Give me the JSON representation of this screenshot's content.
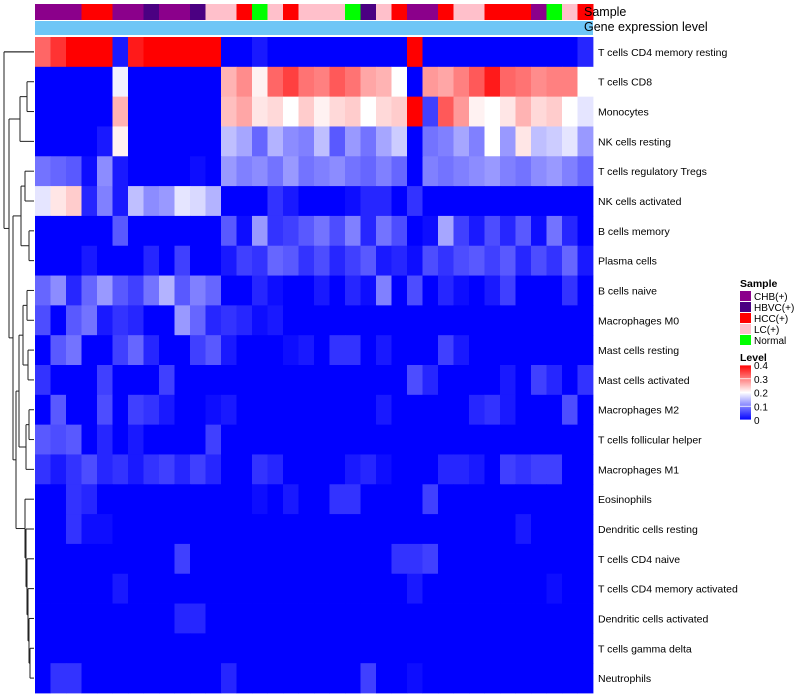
{
  "chart_data": {
    "type": "heatmap",
    "title": "",
    "annotation_labels": [
      "Sample",
      "Gene expression level"
    ],
    "annotation_bar_color": "#6EC6F6",
    "sample_groups": [
      {
        "name": "CHB(+)",
        "color": "#8B008B"
      },
      {
        "name": "HBVC(+)",
        "color": "#4B0082"
      },
      {
        "name": "HCC(+)",
        "color": "#FF0000"
      },
      {
        "name": "LC(+)",
        "color": "#FFC0CB"
      },
      {
        "name": "Normal",
        "color": "#00FF00"
      }
    ],
    "sample_annotation": [
      0,
      0,
      0,
      2,
      2,
      0,
      0,
      1,
      0,
      0,
      1,
      3,
      3,
      2,
      4,
      3,
      2,
      3,
      3,
      3,
      4,
      1,
      3,
      2,
      0,
      0,
      2,
      3,
      3,
      2,
      2,
      2,
      0,
      4,
      3,
      2
    ],
    "rows": [
      "T cells CD4 memory resting",
      "T cells CD8",
      "Monocytes",
      "NK cells resting",
      "T cells regulatory  Tregs",
      "NK cells activated",
      "B cells memory",
      "Plasma cells",
      "B cells naive",
      "Macrophages M0",
      "Mast cells resting",
      "Mast cells activated",
      "Macrophages M2",
      "T cells follicular helper",
      "Macrophages M1",
      "Eosinophils",
      "Dendritic cells resting",
      "T cells CD4 naive",
      "T cells CD4 memory activated",
      "Dendritic cells activated",
      "T cells gamma delta",
      "Neutrophils"
    ],
    "values": [
      [
        0.32,
        0.36,
        0.4,
        0.4,
        0.4,
        0.02,
        0.38,
        0.4,
        0.4,
        0.4,
        0.4,
        0.4,
        0,
        0,
        0.02,
        0,
        0,
        0,
        0,
        0,
        0,
        0,
        0,
        0,
        0.4,
        0,
        0,
        0,
        0,
        0,
        0,
        0,
        0,
        0,
        0,
        0.03
      ],
      [
        0,
        0,
        0,
        0,
        0,
        0.19,
        0,
        0,
        0,
        0,
        0,
        0,
        0.26,
        0.29,
        0.21,
        0.32,
        0.35,
        0.31,
        0.3,
        0.33,
        0.31,
        0.27,
        0.26,
        0.2,
        0,
        0.28,
        0.27,
        0.3,
        0.33,
        0.38,
        0.32,
        0.31,
        0.29,
        0.3,
        0.3,
        0.2
      ],
      [
        0,
        0,
        0,
        0,
        0,
        0.26,
        0,
        0,
        0,
        0,
        0,
        0,
        0.25,
        0.27,
        0.22,
        0.23,
        0.2,
        0.24,
        0.21,
        0.23,
        0.24,
        0.2,
        0.23,
        0.24,
        0.4,
        0.05,
        0.33,
        0.28,
        0.21,
        0.2,
        0.22,
        0.26,
        0.23,
        0.24,
        0.2,
        0.18
      ],
      [
        0,
        0,
        0,
        0,
        0.02,
        0.21,
        0,
        0,
        0,
        0,
        0,
        0,
        0.15,
        0.13,
        0.08,
        0.14,
        0.11,
        0.1,
        0.15,
        0.07,
        0.12,
        0.09,
        0.13,
        0.16,
        0,
        0.09,
        0.1,
        0.13,
        0.1,
        0.2,
        0.12,
        0.22,
        0.15,
        0.16,
        0.18,
        0.12
      ],
      [
        0.09,
        0.08,
        0.07,
        0.01,
        0.11,
        0.02,
        0,
        0,
        0,
        0,
        0.01,
        0,
        0.12,
        0.1,
        0.11,
        0.09,
        0.12,
        0.09,
        0.1,
        0.11,
        0.09,
        0.08,
        0.1,
        0.08,
        0,
        0.1,
        0.09,
        0.1,
        0.11,
        0.12,
        0.1,
        0.09,
        0.11,
        0.12,
        0.1,
        0.08
      ],
      [
        0.18,
        0.22,
        0.24,
        0.03,
        0.1,
        0.02,
        0.15,
        0.11,
        0.12,
        0.18,
        0.17,
        0.14,
        0,
        0,
        0,
        0.04,
        0.02,
        0,
        0,
        0,
        0.01,
        0.03,
        0.03,
        0,
        0.04,
        0,
        0,
        0,
        0,
        0,
        0,
        0,
        0,
        0,
        0,
        0
      ],
      [
        0,
        0,
        0,
        0,
        0,
        0.07,
        0,
        0,
        0,
        0,
        0,
        0,
        0.07,
        0.01,
        0.12,
        0.04,
        0.05,
        0.07,
        0.09,
        0.06,
        0.1,
        0.03,
        0.09,
        0.06,
        0,
        0.01,
        0.13,
        0.05,
        0.02,
        0.06,
        0.03,
        0.07,
        0.01,
        0.09,
        0.03,
        0
      ],
      [
        0,
        0,
        0,
        0.02,
        0,
        0,
        0,
        0.03,
        0,
        0.05,
        0,
        0,
        0.02,
        0.05,
        0.04,
        0.08,
        0.07,
        0.04,
        0.06,
        0.03,
        0.05,
        0.07,
        0.02,
        0.03,
        0.01,
        0.06,
        0.04,
        0.06,
        0.07,
        0.05,
        0.07,
        0.03,
        0.06,
        0.04,
        0.08,
        0.02
      ],
      [
        0.08,
        0.11,
        0.03,
        0.08,
        0.12,
        0.07,
        0.05,
        0.09,
        0.14,
        0.07,
        0.1,
        0.08,
        0,
        0,
        0.03,
        0.01,
        0,
        0,
        0.02,
        0,
        0.03,
        0.01,
        0.1,
        0,
        0.06,
        0,
        0.03,
        0.01,
        0,
        0.02,
        0.05,
        0,
        0,
        0,
        0.04,
        0
      ],
      [
        0.06,
        0,
        0.07,
        0.09,
        0.02,
        0.04,
        0.03,
        0,
        0,
        0.12,
        0.08,
        0.03,
        0.04,
        0.03,
        0.01,
        0.02,
        0,
        0,
        0,
        0,
        0,
        0,
        0,
        0,
        0,
        0,
        0,
        0,
        0,
        0,
        0,
        0,
        0,
        0,
        0,
        0
      ],
      [
        0,
        0.07,
        0.09,
        0,
        0,
        0.05,
        0.08,
        0.03,
        0,
        0,
        0.05,
        0.07,
        0.02,
        0,
        0,
        0,
        0.01,
        0.02,
        0,
        0.04,
        0.04,
        0,
        0.02,
        0,
        0,
        0,
        0.05,
        0.02,
        0,
        0,
        0,
        0,
        0,
        0,
        0,
        0
      ],
      [
        0.04,
        0,
        0,
        0,
        0.05,
        0,
        0,
        0,
        0.05,
        0,
        0,
        0,
        0,
        0,
        0,
        0,
        0,
        0,
        0,
        0,
        0,
        0,
        0,
        0,
        0.06,
        0.03,
        0,
        0,
        0,
        0,
        0.02,
        0,
        0.05,
        0.03,
        0,
        0.04
      ],
      [
        0,
        0.07,
        0,
        0,
        0.06,
        0,
        0.05,
        0.04,
        0.02,
        0,
        0,
        0.01,
        0.02,
        0,
        0,
        0,
        0,
        0,
        0,
        0,
        0,
        0,
        0.02,
        0,
        0,
        0,
        0,
        0,
        0.03,
        0.04,
        0.02,
        0,
        0,
        0,
        0.06,
        0
      ],
      [
        0.07,
        0.06,
        0.07,
        0,
        0.03,
        0,
        0.02,
        0,
        0,
        0,
        0,
        0.05,
        0,
        0,
        0,
        0,
        0,
        0,
        0,
        0,
        0,
        0,
        0,
        0,
        0,
        0,
        0,
        0,
        0,
        0,
        0,
        0,
        0,
        0,
        0,
        0
      ],
      [
        0.04,
        0.02,
        0.04,
        0.06,
        0.03,
        0.04,
        0.02,
        0.04,
        0.05,
        0.03,
        0.05,
        0.03,
        0,
        0,
        0.04,
        0.03,
        0,
        0,
        0,
        0,
        0.02,
        0.03,
        0.01,
        0,
        0,
        0,
        0.03,
        0.03,
        0.02,
        0,
        0.05,
        0.04,
        0.05,
        0.05,
        0,
        0
      ],
      [
        0,
        0,
        0.04,
        0.03,
        0,
        0,
        0,
        0,
        0,
        0,
        0,
        0,
        0,
        0,
        0.01,
        0,
        0.02,
        0,
        0,
        0.04,
        0.04,
        0,
        0,
        0,
        0,
        0.05,
        0,
        0,
        0,
        0,
        0,
        0,
        0,
        0,
        0,
        0
      ],
      [
        0,
        0,
        0.04,
        0.01,
        0.01,
        0,
        0,
        0,
        0,
        0,
        0,
        0,
        0,
        0,
        0,
        0,
        0,
        0,
        0,
        0,
        0,
        0,
        0,
        0,
        0,
        0,
        0,
        0,
        0,
        0,
        0,
        0.02,
        0,
        0,
        0,
        0
      ],
      [
        0,
        0,
        0,
        0,
        0,
        0,
        0,
        0,
        0,
        0.05,
        0,
        0,
        0,
        0,
        0,
        0,
        0,
        0,
        0,
        0,
        0,
        0,
        0,
        0.04,
        0.04,
        0.05,
        0,
        0,
        0,
        0,
        0,
        0,
        0,
        0,
        0,
        0
      ],
      [
        0,
        0,
        0,
        0,
        0,
        0.02,
        0,
        0,
        0,
        0,
        0,
        0,
        0,
        0,
        0,
        0,
        0,
        0,
        0,
        0,
        0,
        0,
        0,
        0,
        0.02,
        0,
        0,
        0,
        0,
        0,
        0,
        0,
        0,
        0.01,
        0,
        0
      ],
      [
        0,
        0,
        0,
        0,
        0,
        0,
        0,
        0,
        0,
        0.03,
        0.03,
        0,
        0,
        0,
        0,
        0,
        0,
        0,
        0,
        0,
        0,
        0,
        0,
        0,
        0,
        0,
        0,
        0,
        0,
        0,
        0,
        0,
        0,
        0,
        0,
        0
      ],
      [
        0,
        0,
        0,
        0,
        0,
        0,
        0,
        0,
        0,
        0,
        0,
        0,
        0,
        0,
        0,
        0,
        0,
        0,
        0,
        0,
        0,
        0,
        0,
        0,
        0,
        0,
        0,
        0,
        0,
        0,
        0,
        0,
        0,
        0,
        0,
        0
      ],
      [
        0,
        0.04,
        0.04,
        0,
        0,
        0,
        0,
        0,
        0,
        0,
        0,
        0,
        0.03,
        0,
        0,
        0,
        0,
        0,
        0,
        0,
        0,
        0.05,
        0,
        0,
        0.01,
        0,
        0,
        0,
        0,
        0,
        0,
        0,
        0,
        0,
        0,
        0
      ]
    ],
    "color_scale": {
      "min": 0,
      "max": 0.4,
      "colors": [
        "#0000FF",
        "#FFFFFF",
        "#FF0000"
      ]
    },
    "legend": {
      "sample_title": "Sample",
      "level_title": "Level",
      "level_ticks": [
        0,
        0.1,
        0.2,
        0.3,
        0.4
      ],
      "placement": "right"
    },
    "dendrogram": "rows-left"
  }
}
